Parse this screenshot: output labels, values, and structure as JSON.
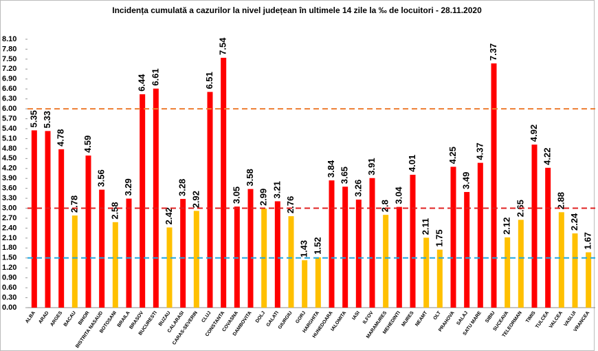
{
  "chart_data": {
    "type": "bar",
    "title": "Incidența cumulată a cazurilor la nivel județean în ultimele 14 zile la ‰ de locuitori - 28.11.2020",
    "categories": [
      "ALBA",
      "ARAD",
      "ARGES",
      "BACAU",
      "BIHOR",
      "BISTRITA NASAUD",
      "BOTOSANI",
      "BRAILA",
      "BRASOV",
      "BUCURESTI",
      "BUZAU",
      "CALARASI",
      "CARAS-SEVERIN",
      "CLUJ",
      "CONSTANTA",
      "COVASNA",
      "DAMBOVITA",
      "DOLJ",
      "GALATI",
      "GIURGIU",
      "GORJ",
      "HARGHITA",
      "HUNEDOARA",
      "IALOMITA",
      "IASI",
      "ILFOV",
      "MARAMURES",
      "MEHEDINTI",
      "MURES",
      "NEAMT",
      "OLT",
      "PRAHOVA",
      "SALAJ",
      "SATU MARE",
      "SIBIU",
      "SUCEAVA",
      "TELEORMAN",
      "TIMIS",
      "TULCEA",
      "VALCEA",
      "VASLUI",
      "VRANCEA"
    ],
    "values": [
      5.35,
      5.33,
      4.78,
      2.78,
      4.59,
      3.56,
      2.58,
      3.29,
      6.44,
      6.61,
      2.42,
      3.28,
      2.92,
      6.51,
      7.54,
      3.05,
      3.58,
      2.99,
      3.21,
      2.76,
      1.43,
      1.52,
      3.84,
      3.65,
      3.26,
      3.91,
      2.8,
      3.04,
      4.01,
      2.11,
      1.75,
      4.25,
      3.49,
      4.37,
      7.37,
      2.12,
      2.65,
      4.92,
      4.22,
      2.88,
      2.24,
      1.67
    ],
    "colors": [
      "#ff0000",
      "#ff0000",
      "#ff0000",
      "#ffc000",
      "#ff0000",
      "#ff0000",
      "#ffc000",
      "#ff0000",
      "#ff0000",
      "#ff0000",
      "#ffc000",
      "#ff0000",
      "#ffc000",
      "#ff0000",
      "#ff0000",
      "#ff0000",
      "#ff0000",
      "#ffc000",
      "#ff0000",
      "#ffc000",
      "#ffc000",
      "#ffc000",
      "#ff0000",
      "#ff0000",
      "#ff0000",
      "#ff0000",
      "#ffc000",
      "#ff0000",
      "#ff0000",
      "#ffc000",
      "#ffc000",
      "#ff0000",
      "#ff0000",
      "#ff0000",
      "#ff0000",
      "#ffc000",
      "#ffc000",
      "#ff0000",
      "#ff0000",
      "#ffc000",
      "#ffc000",
      "#ffc000"
    ],
    "ylim": [
      0,
      8.1
    ],
    "yticks": [
      {
        "value": 0,
        "label": "0.00"
      },
      {
        "value": 0.3,
        "label": "0.30"
      },
      {
        "value": 0.6,
        "label": "0.60"
      },
      {
        "value": 0.9,
        "label": "0.90"
      },
      {
        "value": 1.2,
        "label": "1.20"
      },
      {
        "value": 1.5,
        "label": "1.50"
      },
      {
        "value": 1.8,
        "label": "1.80"
      },
      {
        "value": 2.1,
        "label": "2.10"
      },
      {
        "value": 2.4,
        "label": "2.40"
      },
      {
        "value": 2.7,
        "label": "2.70"
      },
      {
        "value": 3,
        "label": "3.00"
      },
      {
        "value": 3.3,
        "label": "3.30"
      },
      {
        "value": 3.6,
        "label": "3.60"
      },
      {
        "value": 3.9,
        "label": "3.90"
      },
      {
        "value": 4.2,
        "label": "4.20"
      },
      {
        "value": 4.5,
        "label": "4.50"
      },
      {
        "value": 4.8,
        "label": "4.80"
      },
      {
        "value": 5.1,
        "label": "5.10"
      },
      {
        "value": 5.4,
        "label": "5.40"
      },
      {
        "value": 5.7,
        "label": "5.70"
      },
      {
        "value": 6,
        "label": "6.00"
      },
      {
        "value": 6.3,
        "label": "6.30"
      },
      {
        "value": 6.6,
        "label": "6.60"
      },
      {
        "value": 6.9,
        "label": "6.90"
      },
      {
        "value": 7.2,
        "label": "7.20"
      },
      {
        "value": 7.5,
        "label": "7.50"
      },
      {
        "value": 7.8,
        "label": "7.80"
      },
      {
        "value": 8.1,
        "label": "8.10"
      }
    ],
    "reference_lines": [
      {
        "value": 6,
        "color": "#ed7d31"
      },
      {
        "value": 3,
        "color": "#e02020"
      },
      {
        "value": 1.5,
        "color": "#1ea7e1"
      }
    ],
    "grid": false
  }
}
